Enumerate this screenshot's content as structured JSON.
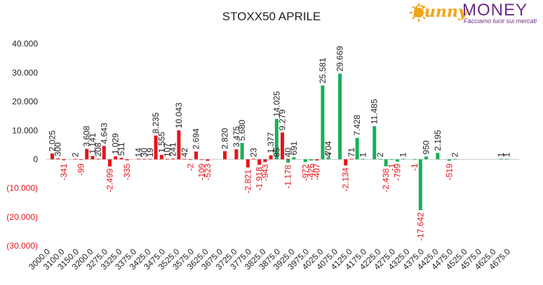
{
  "logo": {
    "brand_sunny": "Sunny",
    "brand_money": "MONEY",
    "tagline": "Facciamo luce sui mercati"
  },
  "chart_data": {
    "type": "bar",
    "title": "STOXX50 APRILE",
    "xlabel": "",
    "ylabel": "",
    "ylim": [
      -32000,
      45000
    ],
    "grid": false,
    "legend": "none",
    "y_ticks": [
      {
        "value": 40000,
        "label": "40.000"
      },
      {
        "value": 30000,
        "label": "30.000"
      },
      {
        "value": 20000,
        "label": "20.000"
      },
      {
        "value": 10000,
        "label": "10.000"
      },
      {
        "value": 0,
        "label": "0"
      },
      {
        "value": -10000,
        "label": "(10.000)"
      },
      {
        "value": -20000,
        "label": "(20.000)"
      },
      {
        "value": -30000,
        "label": "(30.000)"
      }
    ],
    "categories": [
      "3000.0",
      "3100.0",
      "3150.0",
      "3200.0",
      "3275.0",
      "3325.0",
      "3375.0",
      "3425.0",
      "3475.0",
      "3525.0",
      "3575.0",
      "3625.0",
      "3675.0",
      "3725.0",
      "3775.0",
      "3825.0",
      "3875.0",
      "3925.0",
      "3975.0",
      "4025.0",
      "4075.0",
      "4125.0",
      "4175.0",
      "4225.0",
      "4275.0",
      "4325.0",
      "4375.0",
      "4425.0",
      "4475.0",
      "4525.0",
      "4575.0",
      "4625.0",
      "4675.0"
    ],
    "colors": {
      "calls": "#e8141b",
      "puts": "#18b05a",
      "negative_label": "#e8141b",
      "positive_label": "#222222"
    },
    "series": [
      {
        "values": [
          {
            "slot": 0,
            "value": 2025
          },
          {
            "slot": 1,
            "value": 300
          },
          {
            "slot": 2,
            "value": -341
          },
          {
            "slot": 4,
            "value": 2
          },
          {
            "slot": 5,
            "value": -99
          },
          {
            "slot": 6,
            "value": 3608
          },
          {
            "slot": 7,
            "value": 1141
          },
          {
            "slot": 8,
            "value": 208
          },
          {
            "slot": 9,
            "value": 4643
          },
          {
            "slot": 10,
            "value": -2499
          },
          {
            "slot": 11,
            "value": 1029
          },
          {
            "slot": 12,
            "value": 511
          },
          {
            "slot": 13,
            "value": -335
          },
          {
            "slot": 15,
            "value": 14
          },
          {
            "slot": 16,
            "value": 30
          },
          {
            "slot": 17,
            "value": 19
          },
          {
            "slot": 18,
            "value": 8235
          },
          {
            "slot": 19,
            "value": 1555
          },
          {
            "slot": 20,
            "value": 107
          },
          {
            "slot": 21,
            "value": 241
          },
          {
            "slot": 22,
            "value": 10043
          },
          {
            "slot": 23,
            "value": 42
          },
          {
            "slot": 24,
            "value": -2
          },
          {
            "slot": 25,
            "value": 2694
          },
          {
            "slot": 26,
            "value": -109
          },
          {
            "slot": 27,
            "value": -523
          },
          {
            "slot": 30,
            "value": 2820
          },
          {
            "slot": 32,
            "value": 3475
          },
          {
            "slot": 34,
            "value": -2821
          },
          {
            "slot": 35,
            "value": 23
          },
          {
            "slot": 36,
            "value": -1918
          },
          {
            "slot": 37,
            "value": -943
          },
          {
            "slot": 38,
            "value": 1377
          },
          {
            "slot": 39,
            "value": 85
          },
          {
            "slot": 40,
            "value": 9279
          },
          {
            "slot": 41,
            "value": 40
          },
          {
            "slot": 46,
            "value": -407
          },
          {
            "slot": 48,
            "value": 4
          },
          {
            "slot": 51,
            "value": -2134
          },
          {
            "slot": 52,
            "value": 71
          }
        ]
      },
      {
        "values": [
          {
            "slot": 33,
            "value": 5680
          },
          {
            "slot": 39,
            "value": 14025
          },
          {
            "slot": 41,
            "value": -1178
          },
          {
            "slot": 42,
            "value": 691
          },
          {
            "slot": 44,
            "value": -972
          },
          {
            "slot": 45,
            "value": -426
          },
          {
            "slot": 47,
            "value": 25581
          },
          {
            "slot": 48,
            "value": 704
          },
          {
            "slot": 50,
            "value": 29669
          },
          {
            "slot": 53,
            "value": 7428
          },
          {
            "slot": 54,
            "value": 1
          },
          {
            "slot": 56,
            "value": 11485
          },
          {
            "slot": 57,
            "value": 2
          },
          {
            "slot": 58,
            "value": -2438
          },
          {
            "slot": 59,
            "value": -1
          },
          {
            "slot": 60,
            "value": -799
          },
          {
            "slot": 61,
            "value": 1
          },
          {
            "slot": 63,
            "value": -1
          },
          {
            "slot": 64,
            "value": -17642
          },
          {
            "slot": 65,
            "value": 950
          },
          {
            "slot": 67,
            "value": 2195
          },
          {
            "slot": 69,
            "value": -519
          },
          {
            "slot": 70,
            "value": 2
          },
          {
            "slot": 78,
            "value": 1
          },
          {
            "slot": 79,
            "value": 1
          }
        ]
      }
    ]
  }
}
